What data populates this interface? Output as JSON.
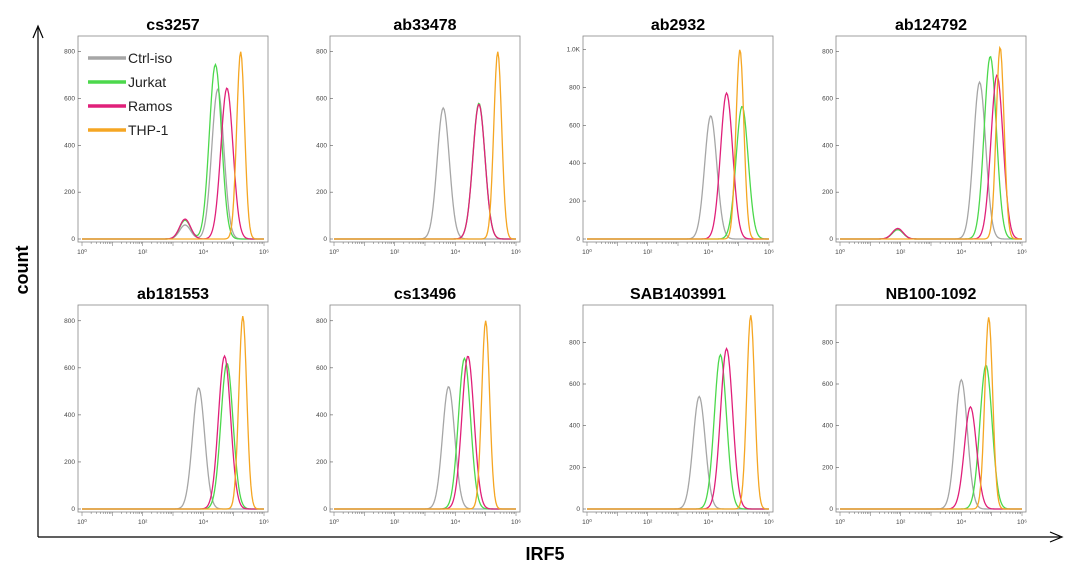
{
  "figure": {
    "xlabel": "IRF5",
    "ylabel": "count",
    "legend": [
      {
        "name": "Ctrl-iso",
        "color": "#a6a6a6"
      },
      {
        "name": "Jurkat",
        "color": "#4cd84c"
      },
      {
        "name": "Ramos",
        "color": "#e0207a"
      },
      {
        "name": "THP-1",
        "color": "#f5a623"
      }
    ]
  },
  "chart_data": [
    {
      "type": "line",
      "title": "cs3257",
      "x_scale": "log",
      "xlim": [
        1,
        1000000
      ],
      "x_ticks": [
        "10⁰",
        "10²",
        "10⁴",
        "10⁶"
      ],
      "ylim": [
        0,
        850
      ],
      "y_ticks": [
        "0",
        "200",
        "400",
        "600",
        "800"
      ],
      "series": [
        {
          "name": "Ctrl-iso",
          "peak_x": 30000,
          "peak_y": 640,
          "shoulder_x": 2500,
          "shoulder_y": 60
        },
        {
          "name": "Jurkat",
          "peak_x": 25000,
          "peak_y": 745,
          "shoulder_x": 2500,
          "shoulder_y": 80
        },
        {
          "name": "Ramos",
          "peak_x": 60000,
          "peak_y": 645,
          "shoulder_x": 2500,
          "shoulder_y": 85
        },
        {
          "name": "THP-1",
          "peak_x": 170000,
          "peak_y": 800
        }
      ]
    },
    {
      "type": "line",
      "title": "ab33478",
      "x_scale": "log",
      "xlim": [
        1,
        1000000
      ],
      "x_ticks": [
        "10⁰",
        "10²",
        "10⁴",
        "10⁶"
      ],
      "ylim": [
        0,
        850
      ],
      "y_ticks": [
        "0",
        "200",
        "400",
        "600",
        "800"
      ],
      "series": [
        {
          "name": "Ctrl-iso",
          "peak_x": 4000,
          "peak_y": 560
        },
        {
          "name": "Jurkat",
          "peak_x": 60000,
          "peak_y": 580
        },
        {
          "name": "Ramos",
          "peak_x": 60000,
          "peak_y": 575
        },
        {
          "name": "THP-1",
          "peak_x": 250000,
          "peak_y": 800
        }
      ]
    },
    {
      "type": "line",
      "title": "ab2932",
      "x_scale": "log",
      "xlim": [
        1,
        1000000
      ],
      "x_ticks": [
        "10⁰",
        "10²",
        "10⁴",
        "10⁶"
      ],
      "ylim": [
        0,
        1050
      ],
      "y_ticks": [
        "0",
        "200",
        "400",
        "600",
        "800",
        "1.0K"
      ],
      "series": [
        {
          "name": "Ctrl-iso",
          "peak_x": 12000,
          "peak_y": 650
        },
        {
          "name": "Jurkat",
          "peak_x": 130000,
          "peak_y": 700
        },
        {
          "name": "Ramos",
          "peak_x": 40000,
          "peak_y": 770
        },
        {
          "name": "THP-1",
          "peak_x": 110000,
          "peak_y": 1000
        }
      ]
    },
    {
      "type": "line",
      "title": "ab124792",
      "x_scale": "log",
      "xlim": [
        1,
        1000000
      ],
      "x_ticks": [
        "10⁰",
        "10²",
        "10⁴",
        "10⁶"
      ],
      "ylim": [
        0,
        850
      ],
      "y_ticks": [
        "0",
        "200",
        "400",
        "600",
        "800"
      ],
      "series": [
        {
          "name": "Ctrl-iso",
          "peak_x": 40000,
          "peak_y": 670,
          "shoulder_x": 80,
          "shoulder_y": 40
        },
        {
          "name": "Jurkat",
          "peak_x": 90000,
          "peak_y": 780,
          "shoulder_x": 80,
          "shoulder_y": 40
        },
        {
          "name": "Ramos",
          "peak_x": 150000,
          "peak_y": 700,
          "shoulder_x": 80,
          "shoulder_y": 45
        },
        {
          "name": "THP-1",
          "peak_x": 190000,
          "peak_y": 820
        }
      ]
    },
    {
      "type": "line",
      "title": "ab181553",
      "x_scale": "log",
      "xlim": [
        1,
        1000000
      ],
      "x_ticks": [
        "10⁰",
        "10²",
        "10⁴",
        "10⁶"
      ],
      "ylim": [
        0,
        850
      ],
      "y_ticks": [
        "0",
        "200",
        "400",
        "600",
        "800"
      ],
      "series": [
        {
          "name": "Ctrl-iso",
          "peak_x": 7000,
          "peak_y": 515
        },
        {
          "name": "Jurkat",
          "peak_x": 60000,
          "peak_y": 620
        },
        {
          "name": "Ramos",
          "peak_x": 50000,
          "peak_y": 650
        },
        {
          "name": "THP-1",
          "peak_x": 200000,
          "peak_y": 820
        }
      ]
    },
    {
      "type": "line",
      "title": "cs13496",
      "x_scale": "log",
      "xlim": [
        1,
        1000000
      ],
      "x_ticks": [
        "10⁰",
        "10²",
        "10⁴",
        "10⁶"
      ],
      "ylim": [
        0,
        850
      ],
      "y_ticks": [
        "0",
        "200",
        "400",
        "600",
        "800"
      ],
      "series": [
        {
          "name": "Ctrl-iso",
          "peak_x": 6000,
          "peak_y": 520
        },
        {
          "name": "Jurkat",
          "peak_x": 20000,
          "peak_y": 640
        },
        {
          "name": "Ramos",
          "peak_x": 26000,
          "peak_y": 650
        },
        {
          "name": "THP-1",
          "peak_x": 100000,
          "peak_y": 800
        }
      ]
    },
    {
      "type": "line",
      "title": "SAB1403991",
      "x_scale": "log",
      "xlim": [
        1,
        1000000
      ],
      "x_ticks": [
        "10⁰",
        "10²",
        "10⁴",
        "10⁶"
      ],
      "ylim": [
        0,
        960
      ],
      "y_ticks": [
        "0",
        "200",
        "400",
        "600",
        "800"
      ],
      "series": [
        {
          "name": "Ctrl-iso",
          "peak_x": 5000,
          "peak_y": 540
        },
        {
          "name": "Jurkat",
          "peak_x": 25000,
          "peak_y": 740
        },
        {
          "name": "Ramos",
          "peak_x": 40000,
          "peak_y": 770
        },
        {
          "name": "THP-1",
          "peak_x": 250000,
          "peak_y": 930
        }
      ]
    },
    {
      "type": "line",
      "title": "NB100-1092",
      "x_scale": "log",
      "xlim": [
        1,
        1000000
      ],
      "x_ticks": [
        "10⁰",
        "10²",
        "10⁴",
        "10⁶"
      ],
      "ylim": [
        0,
        960
      ],
      "y_ticks": [
        "0",
        "200",
        "400",
        "600",
        "800"
      ],
      "series": [
        {
          "name": "Ctrl-iso",
          "peak_x": 10000,
          "peak_y": 620
        },
        {
          "name": "Jurkat",
          "peak_x": 65000,
          "peak_y": 690
        },
        {
          "name": "Ramos",
          "peak_x": 20000,
          "peak_y": 490
        },
        {
          "name": "THP-1",
          "peak_x": 80000,
          "peak_y": 920
        }
      ]
    }
  ]
}
